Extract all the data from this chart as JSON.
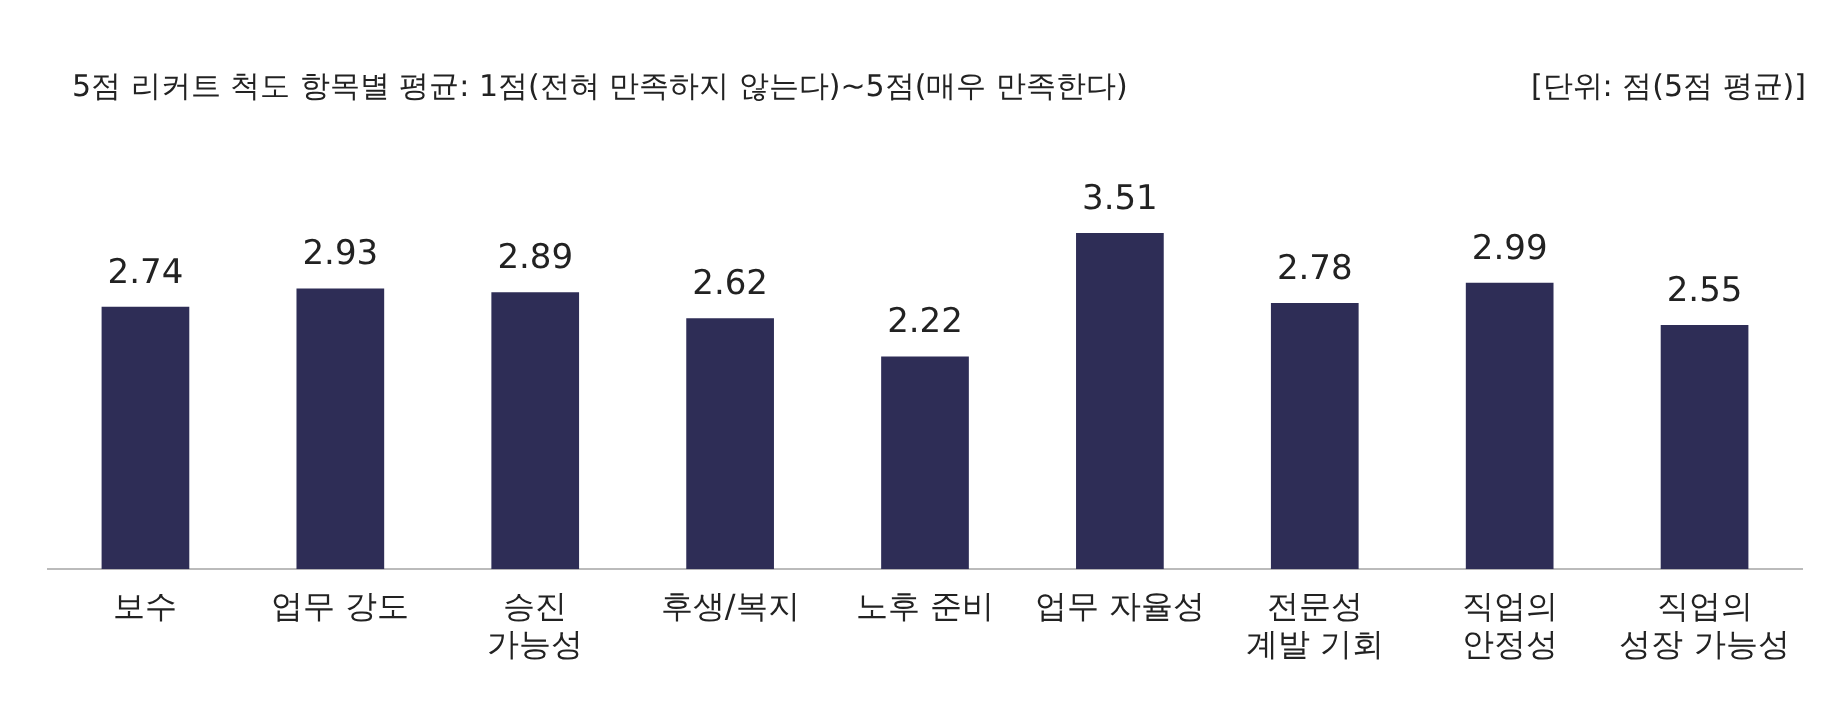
{
  "chart_data": {
    "type": "bar",
    "title": "5점 리커트 척도 항목별 평균: 1점(전혀 만족하지 않는다)~5점(매우 만족한다)",
    "annotations": [
      "[단위: 점(5점 평균)]"
    ],
    "categories": [
      "보수",
      "업무 강도",
      "승진\n가능성",
      "후생/복지",
      "노후 준비",
      "업무 자율성",
      "전문성\n계발 기회",
      "직업의\n안정성",
      "직업의\n성장 가능성"
    ],
    "values": [
      2.74,
      2.93,
      2.89,
      2.62,
      2.22,
      3.51,
      2.78,
      2.99,
      2.55
    ],
    "color": "#2e2d56",
    "data_labels": true,
    "grid": false,
    "legend": false
  }
}
